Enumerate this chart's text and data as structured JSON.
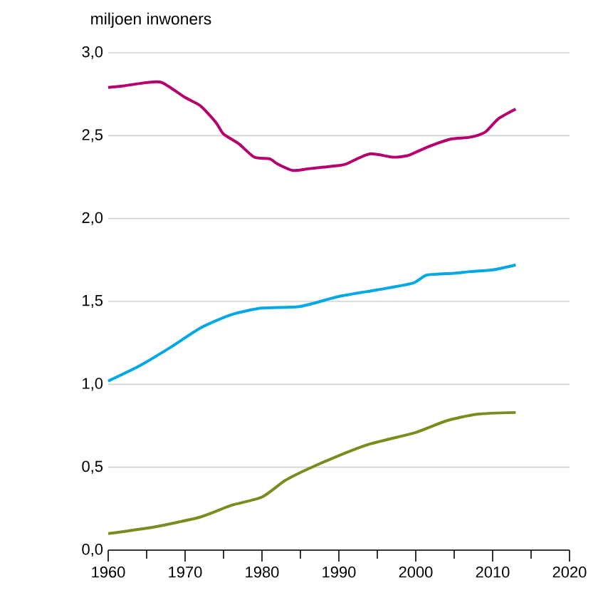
{
  "chart_data": {
    "type": "line",
    "ylabel": "miljoen inwoners",
    "grid": "y",
    "xlim": [
      1960,
      2020
    ],
    "ylim": [
      0,
      3
    ],
    "xticks": [
      1960,
      1970,
      1980,
      1990,
      2000,
      2010,
      2020
    ],
    "yticks": [
      {
        "value": 0,
        "label": "0,0"
      },
      {
        "value": 0.5,
        "label": "0,5"
      },
      {
        "value": 1,
        "label": "1,0"
      },
      {
        "value": 1.5,
        "label": "1,5"
      },
      {
        "value": 2,
        "label": "2,0"
      },
      {
        "value": 2.5,
        "label": "2,5"
      },
      {
        "value": 3,
        "label": "3,0"
      }
    ],
    "series": [
      {
        "color": "#b5006e",
        "x": [
          1960,
          1962,
          1965,
          1967,
          1970,
          1972,
          1974,
          1975,
          1977,
          1979,
          1981,
          1982,
          1984,
          1986,
          1988,
          1990,
          1991,
          1994,
          1997,
          1999,
          2000,
          2002,
          2004.6,
          2007,
          2009,
          2010.7,
          2013
        ],
        "values": [
          2.79,
          2.8,
          2.82,
          2.82,
          2.73,
          2.68,
          2.58,
          2.51,
          2.45,
          2.37,
          2.36,
          2.33,
          2.29,
          2.3,
          2.31,
          2.32,
          2.33,
          2.39,
          2.37,
          2.38,
          2.4,
          2.44,
          2.48,
          2.49,
          2.52,
          2.6,
          2.66
        ]
      },
      {
        "color": "#00a8e6",
        "x": [
          1960,
          1964,
          1968,
          1972,
          1976,
          1980,
          1985,
          1990,
          1995,
          1999.6,
          2001.5,
          2005,
          2007,
          2010,
          2013
        ],
        "values": [
          1.02,
          1.11,
          1.22,
          1.34,
          1.42,
          1.46,
          1.47,
          1.53,
          1.57,
          1.61,
          1.66,
          1.67,
          1.68,
          1.69,
          1.72
        ]
      },
      {
        "color": "#7a8c1d",
        "x": [
          1960,
          1966,
          1972,
          1976,
          1980,
          1983,
          1986,
          1990,
          1994,
          2000,
          2004,
          2008,
          2013
        ],
        "values": [
          0.1,
          0.14,
          0.2,
          0.27,
          0.32,
          0.42,
          0.49,
          0.57,
          0.64,
          0.71,
          0.78,
          0.82,
          0.83
        ]
      }
    ]
  }
}
